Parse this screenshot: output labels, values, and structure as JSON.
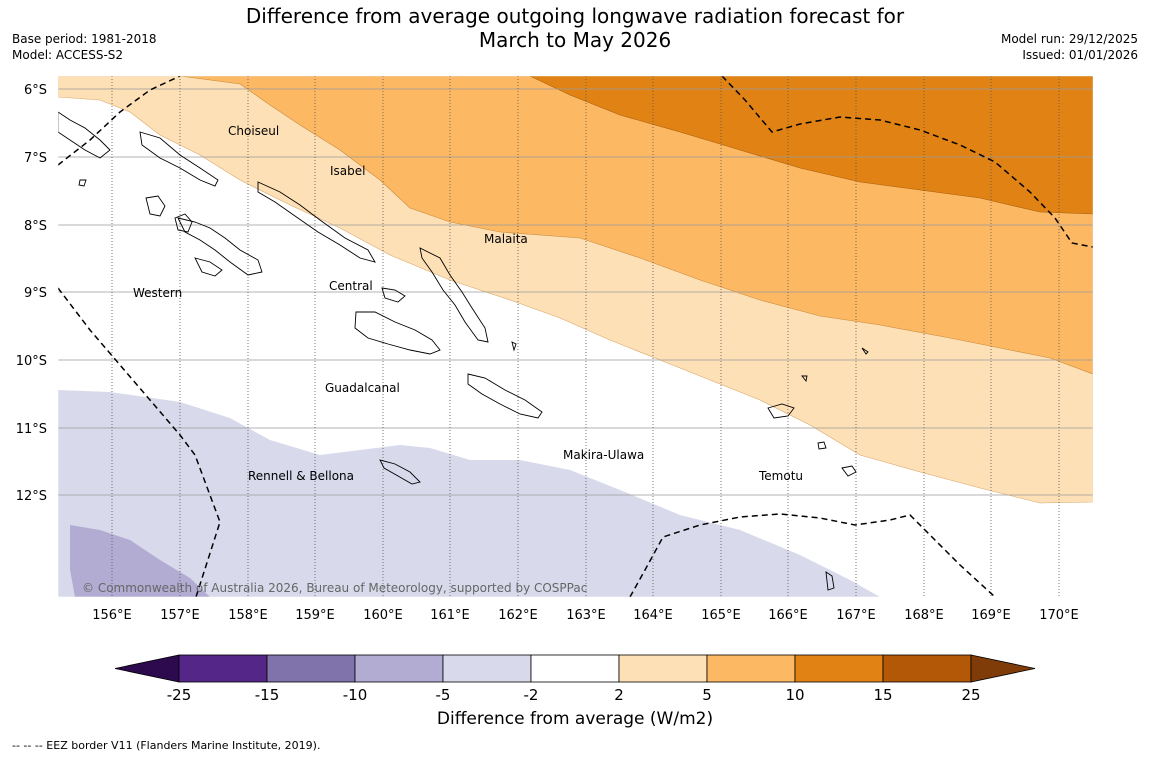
{
  "title_line1": "Difference from average outgoing longwave radiation forecast for",
  "title_line2": "March to May 2026",
  "base_period": "Base period: 1981-2018",
  "model": "Model: ACCESS-S2",
  "model_run": "Model run: 29/12/2025",
  "issued": "Issued: 01/01/2026",
  "latitude_labels": [
    "6°S",
    "7°S",
    "8°S",
    "9°S",
    "10°S",
    "11°S",
    "12°S"
  ],
  "longitude_labels": [
    "156°E",
    "157°E",
    "158°E",
    "159°E",
    "160°E",
    "161°E",
    "162°E",
    "163°E",
    "164°E",
    "165°E",
    "166°E",
    "167°E",
    "168°E",
    "169°E",
    "170°E"
  ],
  "provinces": [
    "Choiseul",
    "Isabel",
    "Malaita",
    "Central",
    "Western",
    "Guadalcanal",
    "Makira-Ulawa",
    "Rennell & Bellona",
    "Temotu"
  ],
  "copyright": "© Commonwealth of Australia 2026, Bureau of Meteorology, supported by COSPPac",
  "colorbar": {
    "title": "Difference from average (W/m2)",
    "ticks": [
      "-25",
      "-15",
      "-10",
      "-5",
      "-2",
      "2",
      "5",
      "10",
      "15",
      "25"
    ],
    "colors": [
      "#2d0a4e",
      "#542688",
      "#8073ac",
      "#b2abd2",
      "#d8daeb",
      "#ffffff",
      "#fee0b6",
      "#fdb863",
      "#e08214",
      "#b35806",
      "#7f3b08"
    ]
  },
  "footnote": "--  --  -- EEZ border V11 (Flanders Marine Institute, 2019)."
}
